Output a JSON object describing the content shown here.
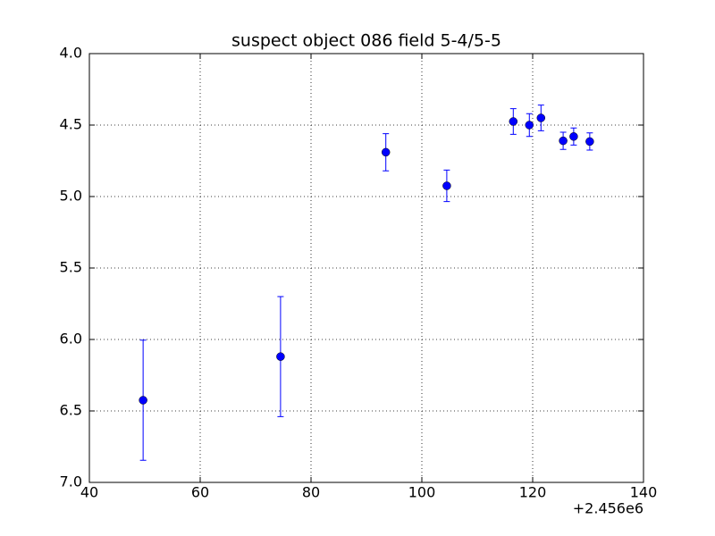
{
  "chart_data": {
    "type": "errorbar",
    "title": "suspect object 086 field 5-4/5-5",
    "x_offset_label": "+2.456e6",
    "x": [
      49.7,
      74.5,
      93.5,
      104.5,
      116.5,
      119.4,
      121.5,
      125.5,
      127.4,
      130.3
    ],
    "values": [
      6.425,
      6.12,
      4.69,
      4.925,
      4.475,
      4.5,
      4.45,
      4.61,
      4.58,
      4.615
    ],
    "errors": [
      0.42,
      0.42,
      0.13,
      0.11,
      0.09,
      0.08,
      0.09,
      0.06,
      0.06,
      0.06
    ],
    "color": "#0000ff",
    "xlim": [
      40,
      140
    ],
    "xticks": [
      40,
      60,
      80,
      100,
      120,
      140
    ],
    "ylim": [
      4.0,
      7.0
    ],
    "invert_y": true,
    "yticks": [
      {
        "value": 4.0,
        "label": "4.0"
      },
      {
        "value": 4.5,
        "label": "4.5"
      },
      {
        "value": 5.0,
        "label": "5.0"
      },
      {
        "value": 5.5,
        "label": "5.5"
      },
      {
        "value": 6.0,
        "label": "6.0"
      },
      {
        "value": 6.5,
        "label": "6.5"
      },
      {
        "value": 7.0,
        "label": "7.0"
      }
    ],
    "grid": true
  }
}
